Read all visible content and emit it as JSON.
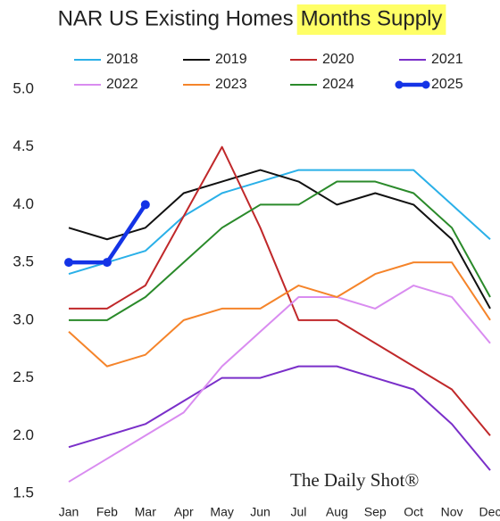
{
  "chart_data": {
    "type": "line",
    "title": "NAR US Existing Homes",
    "title_highlight": "Months Supply",
    "highlight_color": "#ffff66",
    "source": "The Daily Shot®",
    "categories": [
      "Jan",
      "Feb",
      "Mar",
      "Apr",
      "May",
      "Jun",
      "Jul",
      "Aug",
      "Sep",
      "Oct",
      "Nov",
      "Dec"
    ],
    "series": [
      {
        "name": "2018",
        "color": "#2ab0e8",
        "line_width": 2,
        "values": [
          3.4,
          3.5,
          3.6,
          3.9,
          4.1,
          4.2,
          4.3,
          4.3,
          4.3,
          4.3,
          4.0,
          3.7
        ]
      },
      {
        "name": "2019",
        "color": "#111111",
        "line_width": 2,
        "values": [
          3.8,
          3.7,
          3.8,
          4.1,
          4.2,
          4.3,
          4.2,
          4.0,
          4.1,
          4.0,
          3.7,
          3.1
        ]
      },
      {
        "name": "2020",
        "color": "#c0282a",
        "line_width": 2,
        "values": [
          3.1,
          3.1,
          3.3,
          3.9,
          4.5,
          3.8,
          3.0,
          3.0,
          2.8,
          2.6,
          2.4,
          2.0
        ]
      },
      {
        "name": "2021",
        "color": "#7a2fc9",
        "line_width": 2,
        "values": [
          1.9,
          2.0,
          2.1,
          2.3,
          2.5,
          2.5,
          2.6,
          2.6,
          2.5,
          2.4,
          2.1,
          1.7
        ]
      },
      {
        "name": "2022",
        "color": "#d98cf0",
        "line_width": 2,
        "values": [
          1.6,
          1.8,
          2.0,
          2.2,
          2.6,
          2.9,
          3.2,
          3.2,
          3.1,
          3.3,
          3.2,
          2.8
        ]
      },
      {
        "name": "2023",
        "color": "#f5842a",
        "line_width": 2,
        "values": [
          2.9,
          2.6,
          2.7,
          3.0,
          3.1,
          3.1,
          3.3,
          3.2,
          3.4,
          3.5,
          3.5,
          3.0
        ]
      },
      {
        "name": "2024",
        "color": "#2a8a2a",
        "line_width": 2,
        "values": [
          3.0,
          3.0,
          3.2,
          3.5,
          3.8,
          4.0,
          4.0,
          4.2,
          4.2,
          4.1,
          3.8,
          3.2
        ]
      },
      {
        "name": "2025",
        "color": "#1433e6",
        "line_width": 4.5,
        "markers": true,
        "values": [
          3.5,
          3.5,
          4.0,
          null,
          null,
          null,
          null,
          null,
          null,
          null,
          null,
          null
        ]
      }
    ],
    "ylim": [
      1.5,
      5.0
    ],
    "yticks": [
      {
        "value": 5.0,
        "label": "5.0"
      },
      4.5,
      {
        "value": 4.0,
        "label": "4.0"
      },
      3.5,
      {
        "value": 3.0,
        "label": "3.0"
      },
      2.5,
      {
        "value": 2.0,
        "label": "2.0"
      },
      1.5
    ],
    "grid": false
  }
}
